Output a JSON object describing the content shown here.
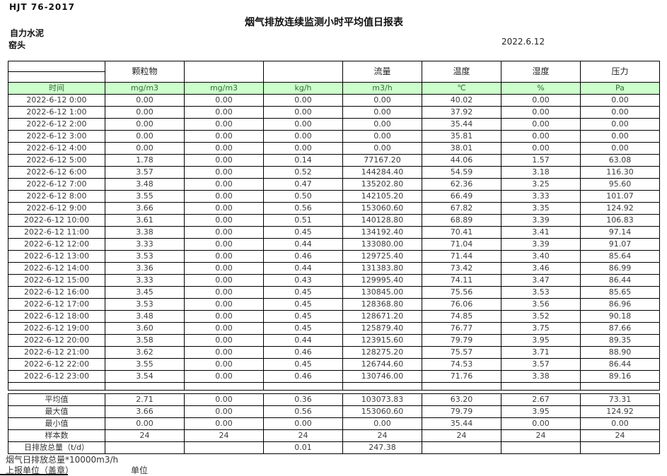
{
  "page": {
    "doc_code": "HJT  76-2017",
    "title": "烟气排放连续监测小时平均值日报表",
    "company": "自力水泥",
    "station": "窑头",
    "date": "2022.6.12"
  },
  "table": {
    "header_groups": [
      "",
      "颗粒物",
      "",
      "",
      "流量",
      "温度",
      "湿度",
      "压力"
    ],
    "units_row": [
      "时间",
      "mg/m3",
      "mg/m3",
      "kg/h",
      "m3/h",
      "℃",
      "%",
      "Pa"
    ],
    "rows": [
      {
        "time": "2022-6-12 0:00",
        "values": [
          "0.00",
          "0.00",
          "0.00",
          "0.00",
          "40.02",
          "0.00",
          "0.00"
        ]
      },
      {
        "time": "2022-6-12 1:00",
        "values": [
          "0.00",
          "0.00",
          "0.00",
          "0.00",
          "37.92",
          "0.00",
          "0.00"
        ]
      },
      {
        "time": "2022-6-12 2:00",
        "values": [
          "0.00",
          "0.00",
          "0.00",
          "0.00",
          "35.44",
          "0.00",
          "0.00"
        ]
      },
      {
        "time": "2022-6-12 3:00",
        "values": [
          "0.00",
          "0.00",
          "0.00",
          "0.00",
          "35.81",
          "0.00",
          "0.00"
        ]
      },
      {
        "time": "2022-6-12 4:00",
        "values": [
          "0.00",
          "0.00",
          "0.00",
          "0.00",
          "38.01",
          "0.00",
          "0.00"
        ]
      },
      {
        "time": "2022-6-12 5:00",
        "values": [
          "1.78",
          "0.00",
          "0.14",
          "77167.20",
          "44.06",
          "1.57",
          "63.08"
        ]
      },
      {
        "time": "2022-6-12 6:00",
        "values": [
          "3.57",
          "0.00",
          "0.52",
          "144284.40",
          "54.59",
          "3.18",
          "116.30"
        ]
      },
      {
        "time": "2022-6-12 7:00",
        "values": [
          "3.48",
          "0.00",
          "0.47",
          "135202.80",
          "62.36",
          "3.25",
          "95.60"
        ]
      },
      {
        "time": "2022-6-12 8:00",
        "values": [
          "3.55",
          "0.00",
          "0.50",
          "142105.20",
          "66.49",
          "3.33",
          "101.07"
        ]
      },
      {
        "time": "2022-6-12 9:00",
        "values": [
          "3.66",
          "0.00",
          "0.56",
          "153060.60",
          "67.82",
          "3.35",
          "124.92"
        ]
      },
      {
        "time": "2022-6-12 10:00",
        "values": [
          "3.61",
          "0.00",
          "0.51",
          "140128.80",
          "68.89",
          "3.39",
          "106.83"
        ]
      },
      {
        "time": "2022-6-12 11:00",
        "values": [
          "3.38",
          "0.00",
          "0.45",
          "134192.40",
          "70.41",
          "3.41",
          "97.14"
        ]
      },
      {
        "time": "2022-6-12 12:00",
        "values": [
          "3.33",
          "0.00",
          "0.44",
          "133080.00",
          "71.04",
          "3.39",
          "91.07"
        ]
      },
      {
        "time": "2022-6-12 13:00",
        "values": [
          "3.53",
          "0.00",
          "0.46",
          "129725.40",
          "71.44",
          "3.40",
          "85.64"
        ]
      },
      {
        "time": "2022-6-12 14:00",
        "values": [
          "3.36",
          "0.00",
          "0.44",
          "131383.80",
          "73.42",
          "3.46",
          "86.99"
        ]
      },
      {
        "time": "2022-6-12 15:00",
        "values": [
          "3.33",
          "0.00",
          "0.43",
          "129995.40",
          "74.11",
          "3.47",
          "86.44"
        ]
      },
      {
        "time": "2022-6-12 16:00",
        "values": [
          "3.45",
          "0.00",
          "0.45",
          "130845.00",
          "75.56",
          "3.53",
          "85.65"
        ]
      },
      {
        "time": "2022-6-12 17:00",
        "values": [
          "3.53",
          "0.00",
          "0.45",
          "128368.80",
          "76.06",
          "3.56",
          "86.96"
        ]
      },
      {
        "time": "2022-6-12 18:00",
        "values": [
          "3.48",
          "0.00",
          "0.45",
          "128671.20",
          "74.85",
          "3.52",
          "90.18"
        ]
      },
      {
        "time": "2022-6-12 19:00",
        "values": [
          "3.60",
          "0.00",
          "0.45",
          "125879.40",
          "76.77",
          "3.75",
          "87.66"
        ]
      },
      {
        "time": "2022-6-12 20:00",
        "values": [
          "3.58",
          "0.00",
          "0.44",
          "123915.60",
          "79.79",
          "3.95",
          "89.35"
        ]
      },
      {
        "time": "2022-6-12 21:00",
        "values": [
          "3.62",
          "0.00",
          "0.46",
          "128275.20",
          "75.57",
          "3.71",
          "88.90"
        ]
      },
      {
        "time": "2022-6-12 22:00",
        "values": [
          "3.55",
          "0.00",
          "0.45",
          "126744.60",
          "74.53",
          "3.57",
          "86.44"
        ]
      },
      {
        "time": "2022-6-12 23:00",
        "values": [
          "3.54",
          "0.00",
          "0.46",
          "130746.00",
          "71.76",
          "3.38",
          "89.16"
        ]
      }
    ],
    "summary": [
      {
        "label": "平均值",
        "values": [
          "2.71",
          "0.00",
          "0.36",
          "103073.83",
          "63.20",
          "2.67",
          "73.31"
        ]
      },
      {
        "label": "最大值",
        "values": [
          "3.66",
          "0.00",
          "0.56",
          "153060.60",
          "79.79",
          "3.95",
          "124.92"
        ]
      },
      {
        "label": "最小值",
        "values": [
          "0.00",
          "0.00",
          "0.00",
          "0.00",
          "35.44",
          "0.00",
          "0.00"
        ]
      },
      {
        "label": "样本数",
        "values": [
          "24",
          "24",
          "24",
          "24",
          "24",
          "24",
          "24"
        ]
      },
      {
        "label": "日排放总量（t/d）",
        "values": [
          "",
          "",
          "0.01",
          "247.38",
          "",
          "",
          ""
        ]
      }
    ]
  },
  "footer": {
    "note1": "烟气日排放总量*10000m3/h",
    "note2": "上报单位（盖章）",
    "note3": "单位"
  },
  "colors": {
    "units_row_bg": "#ccffcc",
    "units_row_text": "#3a6b3a",
    "border": "#000000",
    "text": "#3c3c3c"
  }
}
